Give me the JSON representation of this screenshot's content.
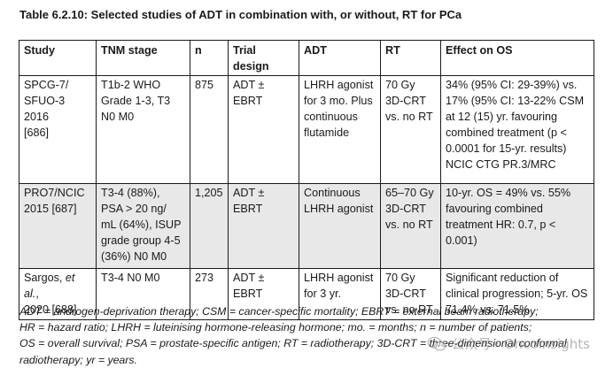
{
  "title": "Table 6.2.10: Selected studies of ADT in combination with, or without, RT for PCa",
  "table": {
    "headers": [
      "Study",
      "TNM stage",
      "n",
      "Trial design",
      "ADT",
      "RT",
      "Effect on OS"
    ],
    "rows": [
      {
        "study": "SPCG-7/\nSFUO-3 2016\n[686]",
        "tnm": "T1b-2 WHO\nGrade 1-3, T3\nN0 M0",
        "n": "875",
        "design": "ADT ± EBRT",
        "adt": "LHRH agonist\nfor 3 mo. Plus\ncontinuous\nflutamide",
        "rt": "70 Gy\n3D-CRT\nvs. no RT",
        "effect": "34% (95% CI: 29-39%) vs.\n17% (95% CI: 13-22% CSM\nat 12 (15) yr. favouring\ncombined treatment (p <\n0.0001 for 15-yr. results)\nNCIC CTG PR.3/MRC"
      },
      {
        "study": "PRO7/NCIC\n2015 [687]",
        "tnm": "T3-4 (88%),\nPSA > 20 ng/\nmL (64%), ISUP\ngrade group 4-5\n(36%) N0 M0",
        "n": "1,205",
        "design": "ADT ± EBRT",
        "adt": "Continuous\nLHRH agonist",
        "rt": "65–70 Gy\n3D-CRT\nvs. no RT",
        "effect": "10-yr. OS = 49% vs. 55%\nfavouring combined\ntreatment HR: 0.7, p <\n0.001)"
      },
      {
        "study_prefix": "Sargos, ",
        "study_italic": "et al.",
        "study_suffix": ",\n2020 [688]",
        "tnm": "T3-4 N0 M0",
        "n": "273",
        "design": "ADT ± EBRT",
        "adt": "LHRH agonist\nfor 3 yr.",
        "rt": "70 Gy\n3D-CRT\nvs. no RT",
        "effect": "Significant reduction of\nclinical progression; 5-yr. OS\n71.4% vs. 71.5%"
      }
    ]
  },
  "footnote": {
    "lines": [
      "ADT = androgen-deprivation therapy; CSM = cancer-specific mortality; EBRT = external beam radiotherapy;",
      "HR = hazard ratio; LHRH = luteinising hormone-releasing hormone; mo. = months; n = number of patients;",
      "OS = overall survival; PSA = prostate-specific antigen; RT = radiotherapy; 3D-CRT = three-dimensional conformal",
      "radiotherapy; yr = years."
    ]
  },
  "watermark": {
    "icon": "wechat-icon",
    "text": "公众号 · Oncoinsights"
  }
}
